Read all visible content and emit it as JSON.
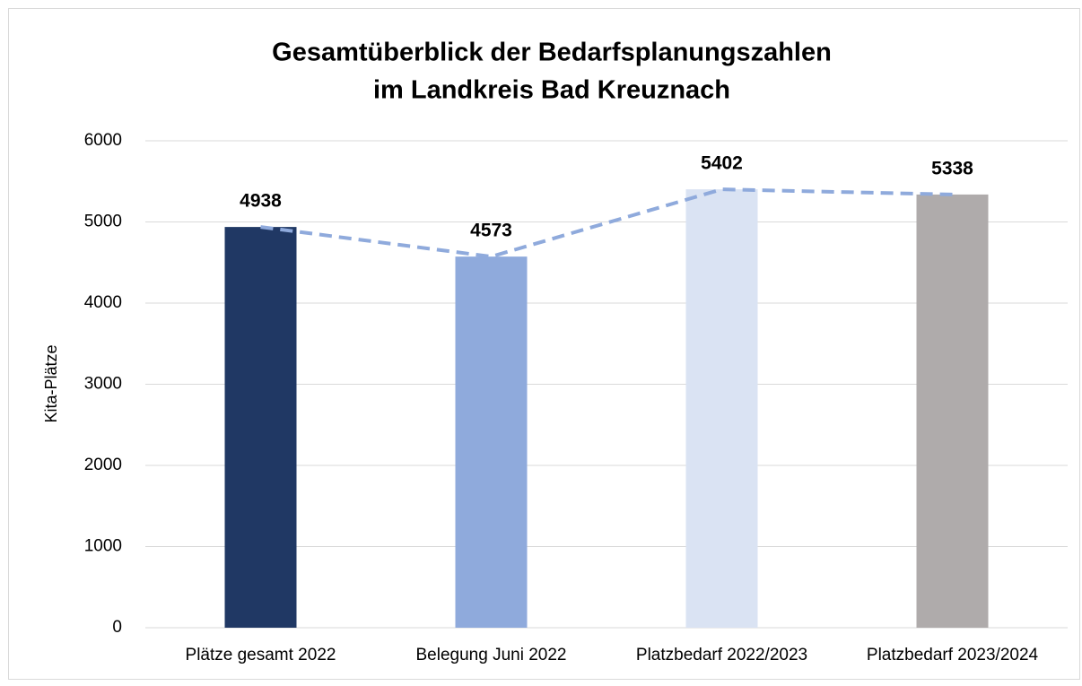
{
  "chart_data": {
    "type": "bar",
    "title": [
      "Gesamtüberblick der Bedarfsplanungszahlen",
      "im Landkreis Bad Kreuznach"
    ],
    "y_label": "Kita-Plätze",
    "categories": [
      "Plätze gesamt 2022",
      "Belegung Juni 2022",
      "Platzbedarf 2022/2023",
      "Platzbedarf 2023/2024"
    ],
    "values": [
      4938,
      4573,
      5402,
      5338
    ],
    "colors": [
      "#203864",
      "#8faadc",
      "#dae3f3",
      "#afabab"
    ],
    "trend_line": {
      "color": "#8faadc",
      "dashed": true
    },
    "ylim": [
      0,
      6000
    ],
    "yticks": [
      0,
      1000,
      2000,
      3000,
      4000,
      5000,
      6000
    ],
    "grid": true
  }
}
